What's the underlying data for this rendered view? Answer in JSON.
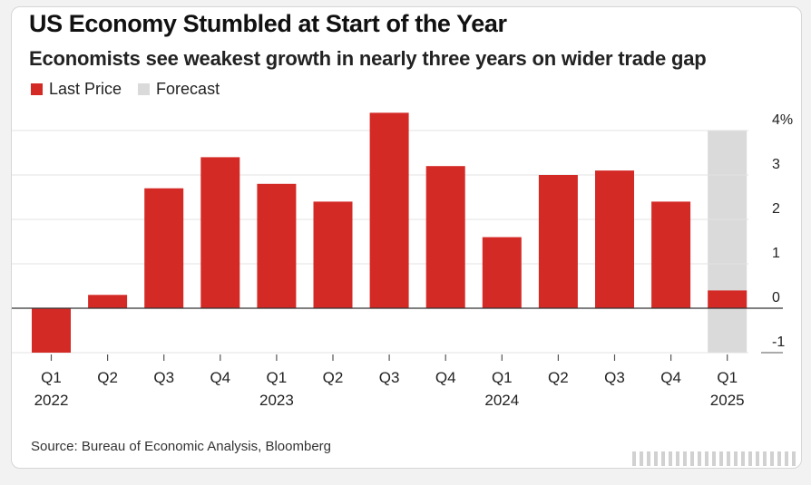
{
  "chart_data": {
    "type": "bar",
    "title": "US Economy Stumbled at Start of the Year",
    "subtitle": "Economists see weakest growth in nearly three years on wider trade gap",
    "legend": [
      {
        "name": "Last Price",
        "color": "#d42a26"
      },
      {
        "name": "Forecast",
        "color": "#dadada"
      }
    ],
    "legend_placement": "top-left",
    "categories": [
      "Q1",
      "Q2",
      "Q3",
      "Q4",
      "Q1",
      "Q2",
      "Q3",
      "Q4",
      "Q1",
      "Q2",
      "Q3",
      "Q4",
      "Q1"
    ],
    "years": [
      {
        "label": "2022",
        "index": 0
      },
      {
        "label": "2023",
        "index": 4
      },
      {
        "label": "2024",
        "index": 8
      },
      {
        "label": "2025",
        "index": 12
      }
    ],
    "values": [
      -1.0,
      0.3,
      2.7,
      3.4,
      2.8,
      2.4,
      4.4,
      3.2,
      1.6,
      3.0,
      3.1,
      2.4,
      0.4
    ],
    "forecast_band_index": 12,
    "forecast_band_range": [
      -1,
      4
    ],
    "ylim": [
      -1,
      4
    ],
    "yticks": [
      -1,
      0,
      1,
      2,
      3,
      4
    ],
    "ytick_labels": [
      "-1",
      "0",
      "1",
      "2",
      "3",
      "4%"
    ],
    "y_axis_side": "right",
    "grid": true,
    "bar_color": "#d42a26",
    "forecast_color": "#dadada"
  },
  "source": "Source: Bureau of Economic Analysis, Bloomberg"
}
